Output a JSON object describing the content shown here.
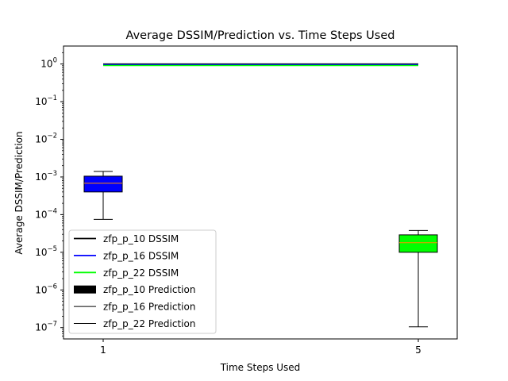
{
  "chart_data": {
    "type": "box",
    "title": "Average DSSIM/Prediction vs. Time Steps Used",
    "xlabel": "Time Steps Used",
    "ylabel": "Average DSSIM/Prediction",
    "yscale": "log",
    "ylim": [
      5e-08,
      3
    ],
    "x_ticks": [
      "1",
      "5"
    ],
    "y_ticks": [
      {
        "value": 1e-07,
        "base": "10",
        "exp": "−7"
      },
      {
        "value": 1e-06,
        "base": "10",
        "exp": "−6"
      },
      {
        "value": 1e-05,
        "base": "10",
        "exp": "−5"
      },
      {
        "value": 0.0001,
        "base": "10",
        "exp": "−4"
      },
      {
        "value": 0.001,
        "base": "10",
        "exp": "−3"
      },
      {
        "value": 0.01,
        "base": "10",
        "exp": "−2"
      },
      {
        "value": 0.1,
        "base": "10",
        "exp": "−1"
      },
      {
        "value": 1,
        "base": "10",
        "exp": "0"
      }
    ],
    "dssim_lines": [
      {
        "name": "zfp_p_10 DSSIM",
        "color": "#000000",
        "x": [
          1,
          5
        ],
        "y": [
          1.0,
          1.0
        ]
      },
      {
        "name": "zfp_p_16 DSSIM",
        "color": "#0000ff",
        "x": [
          1,
          5
        ],
        "y": [
          0.99,
          0.99
        ]
      },
      {
        "name": "zfp_p_22 DSSIM",
        "color": "#00ff00",
        "x": [
          1,
          5
        ],
        "y": [
          0.98,
          0.98
        ]
      }
    ],
    "boxes": [
      {
        "x": 1,
        "fill": "#0000ff",
        "median_color": "#ff8c00",
        "whisker_low": 7.5e-05,
        "q1": 0.0004,
        "median": 0.00068,
        "q3": 0.00105,
        "whisker_high": 0.0014
      },
      {
        "x": 5,
        "fill": "#00ff00",
        "median_color": "#ff8c00",
        "whisker_low": 1.05e-07,
        "q1": 1e-05,
        "median": 1.8e-05,
        "q3": 2.9e-05,
        "whisker_high": 3.8e-05
      }
    ],
    "legend": {
      "placement": "lower-left",
      "entries": [
        {
          "label": "zfp_p_10 DSSIM",
          "kind": "line",
          "color": "#000000"
        },
        {
          "label": "zfp_p_16 DSSIM",
          "kind": "line",
          "color": "#0000ff"
        },
        {
          "label": "zfp_p_22 DSSIM",
          "kind": "line",
          "color": "#00ff00"
        },
        {
          "label": "zfp_p_10 Prediction",
          "kind": "patch",
          "color": "#000000"
        },
        {
          "label": "zfp_p_16 Prediction",
          "kind": "thin-line",
          "color": "#000000"
        },
        {
          "label": "zfp_p_22 Prediction",
          "kind": "thin-line",
          "color": "#000000"
        }
      ]
    }
  }
}
